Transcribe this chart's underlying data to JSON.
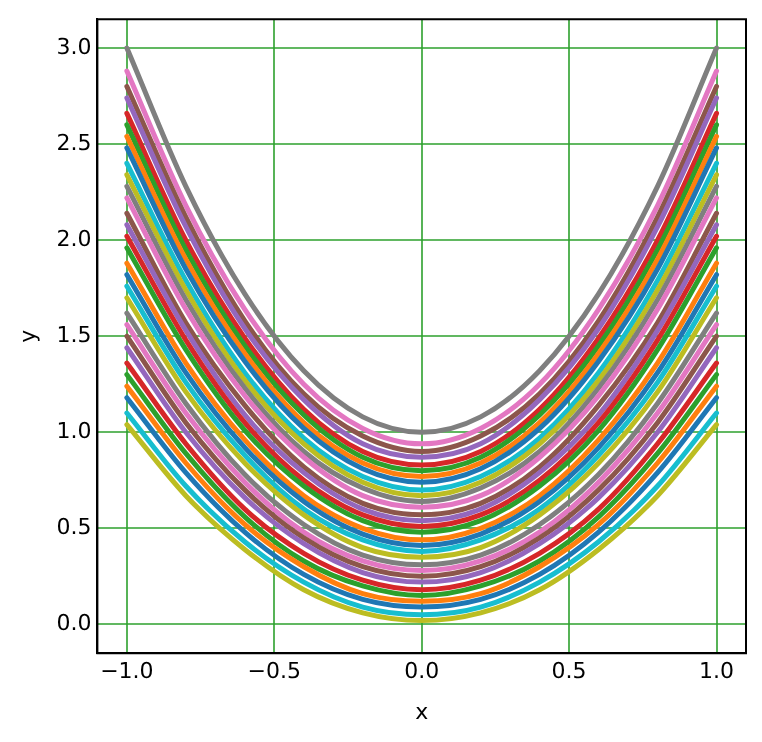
{
  "chart_data": {
    "type": "line",
    "xlabel": "x",
    "ylabel": "y",
    "grid": true,
    "legend": false,
    "marker": "none",
    "line_style": "solid",
    "xlim": [
      -1.1,
      1.1
    ],
    "xticks": [
      {
        "value": -1,
        "label": "−1.0"
      },
      {
        "value": -0.5,
        "label": "−0.5"
      },
      {
        "value": 0,
        "label": "0.0"
      },
      {
        "value": 0.5,
        "label": "0.5"
      },
      {
        "value": 1,
        "label": "1.0"
      }
    ],
    "ylim": [
      -0.15,
      3.15
    ],
    "yticks": [
      {
        "value": 0,
        "label": "0.0"
      },
      {
        "value": 0.5,
        "label": "0.5"
      },
      {
        "value": 1,
        "label": "1.0"
      },
      {
        "value": 1.5,
        "label": "1.5"
      },
      {
        "value": 2,
        "label": "2.0"
      },
      {
        "value": 2.5,
        "label": "2.5"
      },
      {
        "value": 3,
        "label": "3.0"
      }
    ],
    "x": [
      -1,
      -0.8,
      -0.6,
      -0.4,
      -0.2,
      0,
      0.2,
      0.4,
      0.6,
      0.8,
      1
    ],
    "series": [
      {
        "color": "#bcbd22",
        "values": [
          1.04,
          0.67,
          0.39,
          0.18,
          0.06,
          0.02,
          0.06,
          0.18,
          0.39,
          0.67,
          1.04
        ]
      },
      {
        "color": "#17becf",
        "values": [
          1.1,
          0.72,
          0.43,
          0.22,
          0.09,
          0.05,
          0.09,
          0.22,
          0.43,
          0.72,
          1.1
        ]
      },
      {
        "color": "#1f77b4",
        "values": [
          1.18,
          0.79,
          0.48,
          0.26,
          0.13,
          0.09,
          0.13,
          0.26,
          0.48,
          0.79,
          1.18
        ]
      },
      {
        "color": "#ff7f0e",
        "values": [
          1.24,
          0.84,
          0.52,
          0.3,
          0.16,
          0.12,
          0.16,
          0.3,
          0.52,
          0.84,
          1.24
        ]
      },
      {
        "color": "#2ca02c",
        "values": [
          1.3,
          0.89,
          0.56,
          0.33,
          0.2,
          0.15,
          0.2,
          0.33,
          0.56,
          0.89,
          1.3
        ]
      },
      {
        "color": "#d62728",
        "values": [
          1.36,
          0.94,
          0.6,
          0.37,
          0.23,
          0.18,
          0.23,
          0.37,
          0.6,
          0.94,
          1.36
        ]
      },
      {
        "color": "#9467bd",
        "values": [
          1.44,
          1.0,
          0.66,
          0.42,
          0.27,
          0.22,
          0.27,
          0.42,
          0.66,
          1.0,
          1.44
        ]
      },
      {
        "color": "#8c564b",
        "values": [
          1.5,
          1.05,
          0.7,
          0.45,
          0.3,
          0.25,
          0.3,
          0.45,
          0.7,
          1.05,
          1.5
        ]
      },
      {
        "color": "#e377c2",
        "values": [
          1.56,
          1.1,
          0.74,
          0.48,
          0.33,
          0.28,
          0.33,
          0.48,
          0.74,
          1.1,
          1.56
        ]
      },
      {
        "color": "#7f7f7f",
        "values": [
          1.62,
          1.15,
          0.78,
          0.52,
          0.36,
          0.31,
          0.36,
          0.52,
          0.78,
          1.15,
          1.62
        ]
      },
      {
        "color": "#bcbd22",
        "values": [
          1.7,
          1.21,
          0.84,
          0.57,
          0.4,
          0.35,
          0.4,
          0.57,
          0.84,
          1.21,
          1.7
        ]
      },
      {
        "color": "#17becf",
        "values": [
          1.76,
          1.26,
          0.88,
          0.6,
          0.44,
          0.38,
          0.44,
          0.6,
          0.88,
          1.26,
          1.76
        ]
      },
      {
        "color": "#1f77b4",
        "values": [
          1.82,
          1.31,
          0.92,
          0.64,
          0.47,
          0.41,
          0.47,
          0.64,
          0.92,
          1.31,
          1.82
        ]
      },
      {
        "color": "#ff7f0e",
        "values": [
          1.88,
          1.36,
          0.96,
          0.67,
          0.5,
          0.44,
          0.5,
          0.67,
          0.96,
          1.36,
          1.88
        ]
      },
      {
        "color": "#2ca02c",
        "values": [
          1.96,
          1.43,
          1.01,
          0.72,
          0.54,
          0.48,
          0.54,
          0.72,
          1.01,
          1.43,
          1.96
        ]
      },
      {
        "color": "#d62728",
        "values": [
          2.02,
          1.48,
          1.05,
          0.75,
          0.57,
          0.51,
          0.57,
          0.75,
          1.05,
          1.48,
          2.02
        ]
      },
      {
        "color": "#9467bd",
        "values": [
          2.08,
          1.53,
          1.09,
          0.79,
          0.6,
          0.54,
          0.6,
          0.79,
          1.09,
          1.53,
          2.08
        ]
      },
      {
        "color": "#8c564b",
        "values": [
          2.14,
          1.57,
          1.14,
          0.82,
          0.63,
          0.57,
          0.63,
          0.82,
          1.14,
          1.57,
          2.14
        ]
      },
      {
        "color": "#e377c2",
        "values": [
          2.22,
          1.64,
          1.19,
          0.87,
          0.67,
          0.61,
          0.67,
          0.87,
          1.19,
          1.64,
          2.22
        ]
      },
      {
        "color": "#7f7f7f",
        "values": [
          2.28,
          1.69,
          1.23,
          0.9,
          0.71,
          0.64,
          0.71,
          0.9,
          1.23,
          1.69,
          2.28
        ]
      },
      {
        "color": "#bcbd22",
        "values": [
          2.34,
          1.74,
          1.27,
          0.94,
          0.74,
          0.67,
          0.74,
          0.94,
          1.27,
          1.74,
          2.34
        ]
      },
      {
        "color": "#17becf",
        "values": [
          2.4,
          1.79,
          1.31,
          0.97,
          0.77,
          0.7,
          0.77,
          0.97,
          1.31,
          1.79,
          2.4
        ]
      },
      {
        "color": "#1f77b4",
        "values": [
          2.48,
          1.85,
          1.37,
          1.02,
          0.81,
          0.74,
          0.81,
          1.02,
          1.37,
          1.85,
          2.48
        ]
      },
      {
        "color": "#ff7f0e",
        "values": [
          2.54,
          1.9,
          1.41,
          1.05,
          0.84,
          0.77,
          0.84,
          1.05,
          1.41,
          1.9,
          2.54
        ]
      },
      {
        "color": "#2ca02c",
        "values": [
          2.6,
          1.95,
          1.45,
          1.09,
          0.87,
          0.8,
          0.87,
          1.09,
          1.45,
          1.95,
          2.6
        ]
      },
      {
        "color": "#d62728",
        "values": [
          2.66,
          2.0,
          1.49,
          1.12,
          0.9,
          0.83,
          0.9,
          1.12,
          1.49,
          2.0,
          2.66
        ]
      },
      {
        "color": "#9467bd",
        "values": [
          2.74,
          2.07,
          1.54,
          1.17,
          0.94,
          0.87,
          0.94,
          1.17,
          1.54,
          2.07,
          2.74
        ]
      },
      {
        "color": "#8c564b",
        "values": [
          2.8,
          2.12,
          1.58,
          1.2,
          0.98,
          0.9,
          0.98,
          1.2,
          1.58,
          2.12,
          2.8
        ]
      },
      {
        "color": "#e377c2",
        "values": [
          2.88,
          2.18,
          1.64,
          1.25,
          1.02,
          0.94,
          1.02,
          1.25,
          1.64,
          2.18,
          2.88
        ]
      },
      {
        "color": "#7f7f7f",
        "values": [
          3.0,
          2.28,
          1.72,
          1.32,
          1.08,
          1.0,
          1.08,
          1.32,
          1.72,
          2.28,
          3.0
        ]
      }
    ]
  }
}
